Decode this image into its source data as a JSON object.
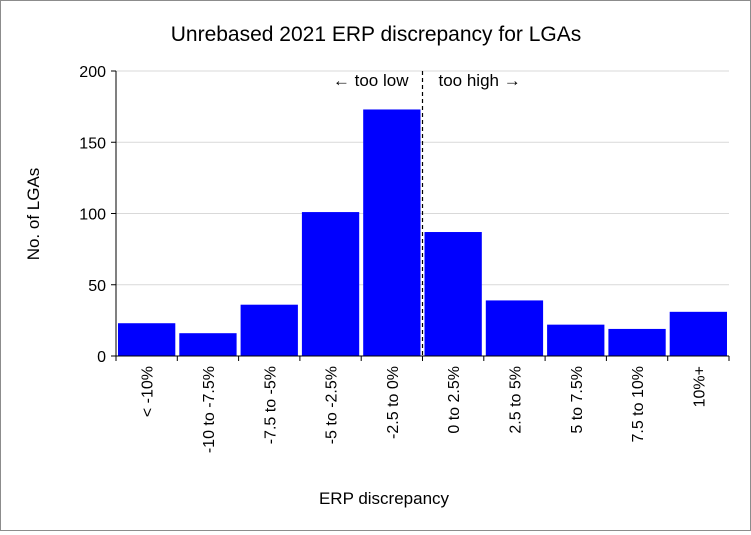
{
  "chart_data": {
    "type": "bar",
    "title": "Unrebased 2021 ERP discrepancy for LGAs",
    "xlabel": "ERP discrepancy",
    "ylabel": "No. of LGAs",
    "categories": [
      "< -10%",
      "-10 to -7.5%",
      "-7.5 to -5%",
      "-5 to -2.5%",
      "-2.5 to 0%",
      "0 to 2.5%",
      "2.5 to 5%",
      "5 to 7.5%",
      "7.5 to 10%",
      "10%+"
    ],
    "values": [
      23,
      16,
      36,
      101,
      173,
      87,
      39,
      22,
      19,
      31
    ],
    "ylim": [
      0,
      200
    ],
    "yticks": [
      0,
      50,
      100,
      150,
      200
    ],
    "grid": true,
    "bar_color": "#0000ff",
    "divider": {
      "after_category": "-2.5 to 0%",
      "style": "dashed",
      "left_label": "← too low",
      "right_label": "too high →"
    }
  }
}
